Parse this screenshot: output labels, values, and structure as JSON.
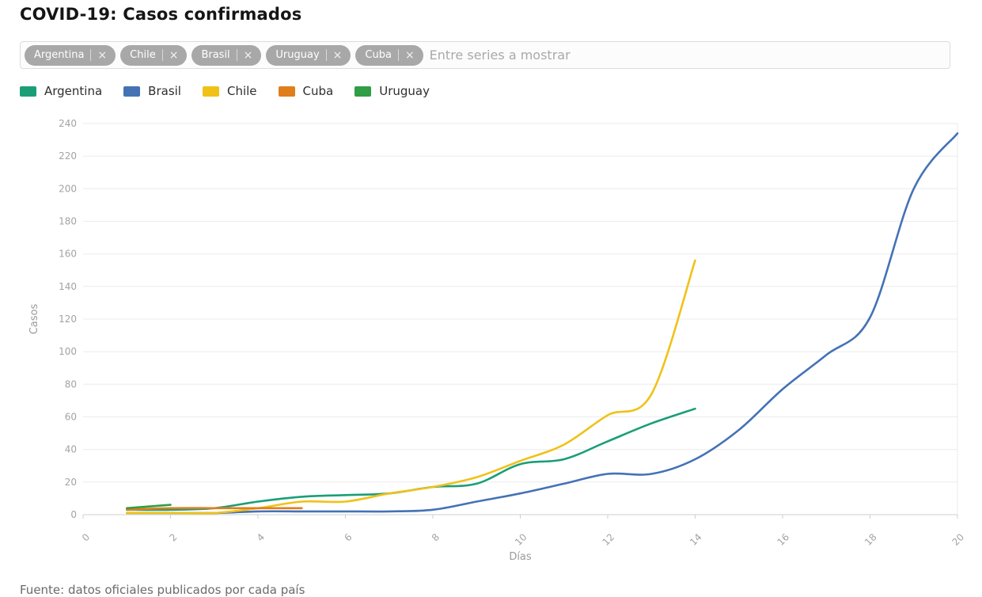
{
  "page": {
    "title": "COVID-19: Casos confirmados"
  },
  "series_input": {
    "tags": [
      {
        "label": "Argentina"
      },
      {
        "label": "Chile"
      },
      {
        "label": "Brasil"
      },
      {
        "label": "Uruguay"
      },
      {
        "label": "Cuba"
      }
    ],
    "remove_icon": "×",
    "placeholder": "Entre series a mostrar",
    "value": ""
  },
  "chart_data": {
    "type": "line",
    "title": "",
    "xlabel": "Días",
    "ylabel": "Casos",
    "xlim": [
      0,
      20
    ],
    "ylim": [
      0,
      240
    ],
    "xticks": [
      0,
      2,
      4,
      6,
      8,
      10,
      12,
      14,
      16,
      18,
      20
    ],
    "yticks": [
      0,
      20,
      40,
      60,
      80,
      100,
      120,
      140,
      160,
      180,
      200,
      220,
      240
    ],
    "grid": true,
    "legend_position": "top-left",
    "series": [
      {
        "name": "Argentina",
        "color": "#1b9e77",
        "x": [
          1,
          2,
          3,
          4,
          5,
          6,
          7,
          8,
          9,
          10,
          11,
          12,
          13,
          14
        ],
        "y": [
          3,
          3,
          4,
          8,
          11,
          12,
          13,
          17,
          19,
          31,
          34,
          45,
          56,
          65
        ]
      },
      {
        "name": "Brasil",
        "color": "#4472b5",
        "x": [
          1,
          2,
          3,
          4,
          5,
          6,
          7,
          8,
          9,
          10,
          11,
          12,
          13,
          14,
          15,
          16,
          17,
          18,
          19,
          20
        ],
        "y": [
          1,
          1,
          1,
          2,
          2,
          2,
          2,
          3,
          8,
          13,
          19,
          25,
          25,
          34,
          52,
          77,
          98,
          121,
          200,
          234
        ]
      },
      {
        "name": "Chile",
        "color": "#f0c218",
        "x": [
          1,
          2,
          3,
          4,
          5,
          6,
          7,
          8,
          9,
          10,
          11,
          12,
          13,
          14
        ],
        "y": [
          1,
          1,
          1,
          4,
          8,
          8,
          13,
          17,
          23,
          33,
          43,
          61,
          74,
          156
        ]
      },
      {
        "name": "Cuba",
        "color": "#e07e1b",
        "x": [
          1,
          2,
          3,
          4,
          5
        ],
        "y": [
          3,
          4,
          4,
          4,
          4
        ]
      },
      {
        "name": "Uruguay",
        "color": "#2f9e44",
        "x": [
          1,
          2
        ],
        "y": [
          4,
          6
        ]
      }
    ]
  },
  "footer": {
    "text": "Fuente: datos oficiales publicados por cada país"
  }
}
